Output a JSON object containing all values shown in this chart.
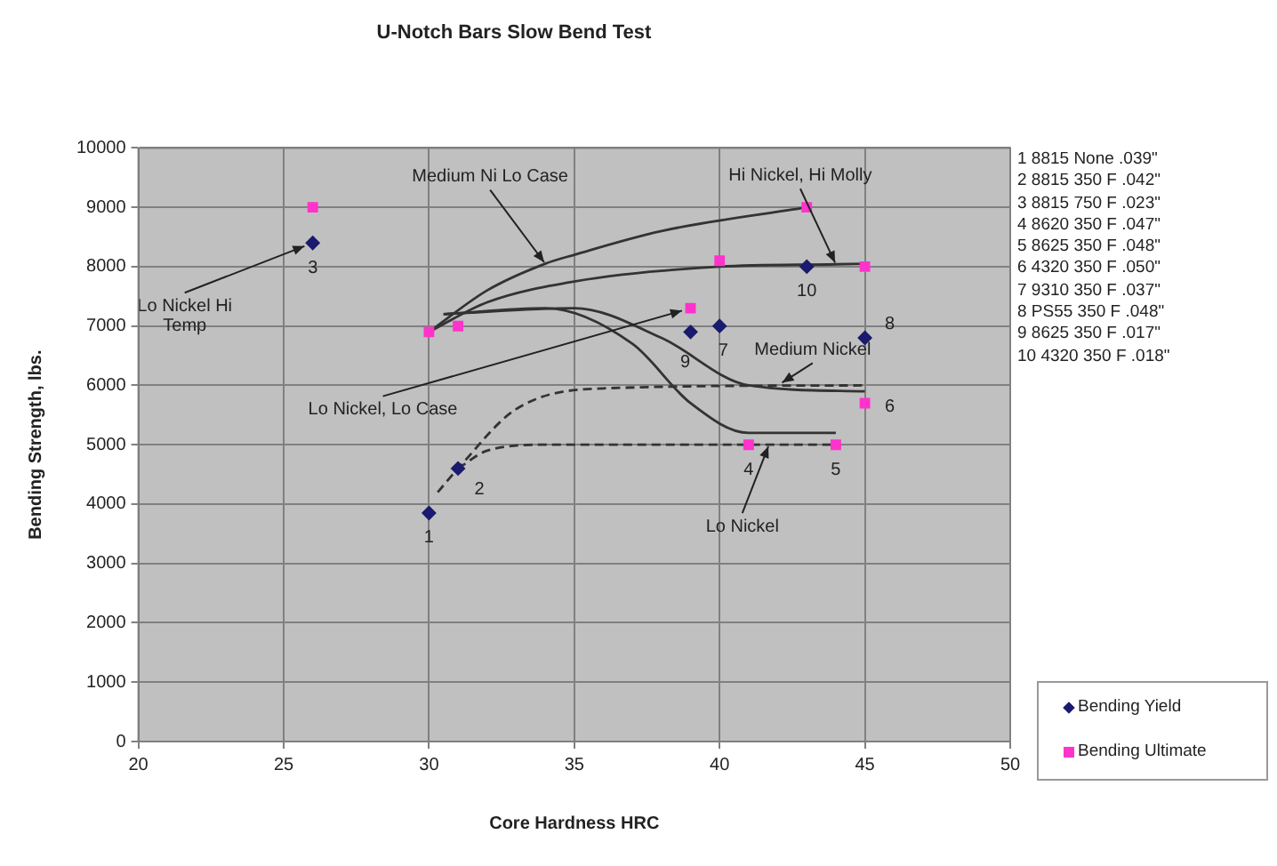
{
  "chart_data": {
    "type": "scatter",
    "title": "U-Notch Bars Slow Bend Test",
    "xlabel": "Core Hardness HRC",
    "ylabel": "Bending Strength, lbs.",
    "xlim": [
      20,
      50
    ],
    "xticks": [
      20,
      25,
      30,
      35,
      40,
      45,
      50
    ],
    "ylim": [
      0,
      10000
    ],
    "yticks": [
      0,
      1000,
      2000,
      3000,
      4000,
      5000,
      6000,
      7000,
      8000,
      9000,
      10000
    ],
    "grid": true,
    "legend": "right",
    "series": [
      {
        "name": "Bending Yield",
        "color": "#1a1a6e",
        "marker": "diamond",
        "x": [
          30,
          31,
          26,
          39,
          40,
          43,
          45
        ],
        "values": [
          3850,
          4600,
          8400,
          6900,
          7000,
          8000,
          6800
        ]
      },
      {
        "name": "Bending Ultimate",
        "color": "#ff33cc",
        "marker": "square",
        "x": [
          26,
          30,
          31,
          39,
          40,
          43,
          45,
          45,
          41,
          44
        ],
        "values": [
          9000,
          6900,
          7000,
          7300,
          8100,
          9000,
          8000,
          5700,
          5000,
          5000
        ]
      },
      {
        "type": "line",
        "color": "#333333",
        "marker": "none",
        "line_style": "solid",
        "x": [
          30,
          32,
          34,
          35,
          38,
          43
        ],
        "values": [
          6900,
          7600,
          8050,
          8200,
          8600,
          9000
        ]
      },
      {
        "type": "line",
        "color": "#333333",
        "marker": "none",
        "line_style": "solid",
        "x": [
          30,
          32,
          35,
          40,
          44,
          45
        ],
        "values": [
          6900,
          7400,
          7750,
          8000,
          8040,
          8050
        ]
      },
      {
        "type": "line",
        "color": "#333333",
        "marker": "none",
        "line_style": "solid",
        "x": [
          30.5,
          34,
          37,
          39,
          41,
          44
        ],
        "values": [
          7200,
          7300,
          6700,
          5700,
          5200,
          5200
        ]
      },
      {
        "type": "line",
        "color": "#333333",
        "marker": "none",
        "line_style": "solid",
        "x": [
          30.5,
          35,
          38,
          41,
          45
        ],
        "values": [
          7200,
          7300,
          6800,
          6000,
          5900
        ]
      },
      {
        "type": "line",
        "color": "#333333",
        "marker": "none",
        "line_style": "dashed",
        "x": [
          30.3,
          31,
          33,
          36,
          45
        ],
        "values": [
          4200,
          4600,
          5600,
          5950,
          6000
        ]
      },
      {
        "type": "line",
        "color": "#333333",
        "marker": "none",
        "line_style": "dashed",
        "x": [
          31,
          32,
          34,
          41.7,
          44
        ],
        "values": [
          4600,
          4900,
          5000,
          5000,
          5000
        ]
      }
    ],
    "annotations": [
      {
        "text": "Lo Nickel Hi Temp",
        "x": 26,
        "y": 8400
      },
      {
        "text": "Medium Ni Lo Case",
        "x": 34,
        "y": 8050
      },
      {
        "text": "Hi Nickel, Hi Molly",
        "x": 44,
        "y": 8040
      },
      {
        "text": "Lo Nickel, Lo Case",
        "x": 39,
        "y": 7300
      },
      {
        "text": "Medium Nickel",
        "x": 42.1,
        "y": 6030
      },
      {
        "text": "Lo Nickel",
        "x": 41.7,
        "y": 5000
      },
      {
        "text": "1",
        "x": 30,
        "y": 3850
      },
      {
        "text": "2",
        "x": 31,
        "y": 4600
      },
      {
        "text": "3",
        "x": 26,
        "y": 8400
      },
      {
        "text": "4",
        "x": 41,
        "y": 5000
      },
      {
        "text": "5",
        "x": 44,
        "y": 5000
      },
      {
        "text": "6",
        "x": 45,
        "y": 5700
      },
      {
        "text": "7",
        "x": 40,
        "y": 7000
      },
      {
        "text": "8",
        "x": 45,
        "y": 6800
      },
      {
        "text": "9",
        "x": 39,
        "y": 6900
      },
      {
        "text": "10",
        "x": 43,
        "y": 8000
      },
      "1 8815 None .039\"",
      "2 8815 350 F .042\"",
      "3 8815 750 F .023\"",
      "4 8620 350 F .047\"",
      "5 8625 350 F .048\"",
      "6 4320 350 F .050\"",
      "7 9310 350 F .037\"",
      "8 PS55 350 F .048\"",
      "9 8625 350 F .017\"",
      "10 4320 350 F .018\""
    ]
  }
}
